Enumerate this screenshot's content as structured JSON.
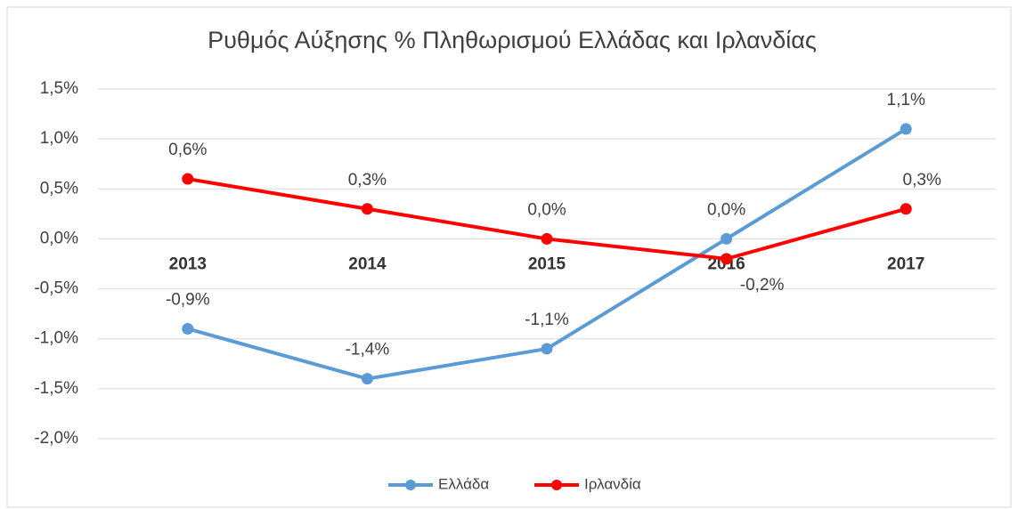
{
  "chart_data": {
    "type": "line",
    "title": "Ρυθμός Αύξησης % Πληθωρισμού Ελλάδας και Ιρλανδίας",
    "categories": [
      "2013",
      "2014",
      "2015",
      "2016",
      "2017"
    ],
    "series": [
      {
        "name": "Ελλάδα",
        "color": "#5b9bd5",
        "values": [
          -0.9,
          -1.4,
          -1.1,
          0.0,
          1.1
        ],
        "value_labels": [
          "-0,9%",
          "-1,4%",
          "-1,1%",
          "0,0%",
          "1,1%"
        ]
      },
      {
        "name": "Ιρλανδία",
        "color": "#ff0000",
        "values": [
          0.6,
          0.3,
          0.0,
          -0.2,
          0.3
        ],
        "value_labels": [
          "0,6%",
          "0,3%",
          "0,0%",
          "-0,2%",
          "0,3%"
        ]
      }
    ],
    "ylim": [
      -2.0,
      1.5
    ],
    "yticks": [
      {
        "value": -2.0,
        "label": "-2,0%"
      },
      {
        "value": -1.5,
        "label": "-1,5%"
      },
      {
        "value": -1.0,
        "label": "-1,0%"
      },
      {
        "value": -0.5,
        "label": "-0,5%"
      },
      {
        "value": 0.0,
        "label": "0,0%"
      },
      {
        "value": 0.5,
        "label": "0,5%"
      },
      {
        "value": 1.0,
        "label": "1,0%"
      },
      {
        "value": 1.5,
        "label": "1,5%"
      }
    ],
    "grid": true,
    "legend": "bottom"
  }
}
